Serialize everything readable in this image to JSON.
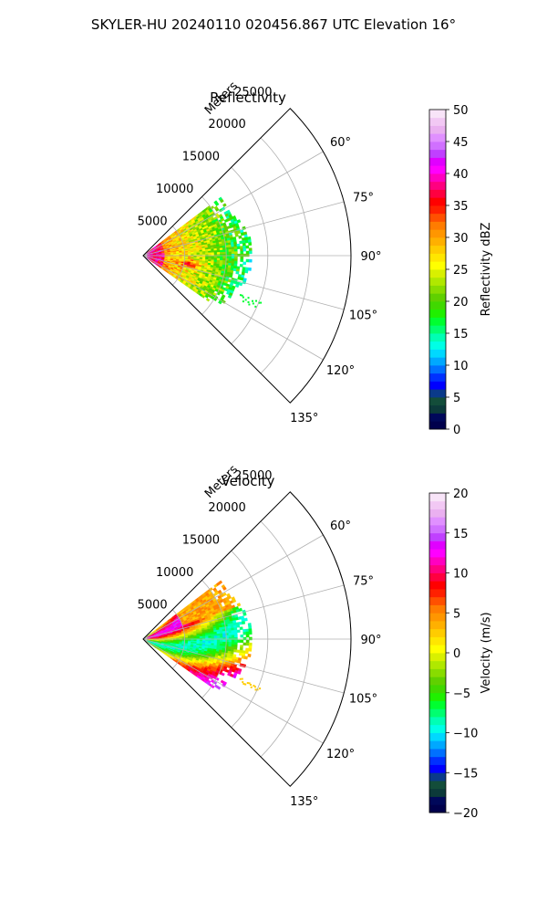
{
  "figure": {
    "title": "SKYLER-HU  20240110  020456.867 UTC Elevation 16°"
  },
  "chart_data": [
    {
      "type": "heatmap",
      "projection": "polar-sector",
      "title": "Reflectivity",
      "rlabel": "Meters",
      "r_ticks": [
        5000,
        10000,
        15000,
        20000,
        25000
      ],
      "r_tick_labels": [
        "5000",
        "10000",
        "15000",
        "20000",
        "25000"
      ],
      "r_max": 25000,
      "theta_range_deg": [
        45,
        135
      ],
      "theta_ticks_deg": [
        60,
        75,
        90,
        105,
        120,
        135
      ],
      "theta_tick_labels": [
        "60°",
        "75°",
        "90°",
        "105°",
        "120°",
        "135°"
      ],
      "grid": true,
      "data_extent": {
        "theta_deg": [
          53,
          124
        ],
        "r_max_m": 14000
      },
      "colorbar": {
        "label": "Reflectivity dBZ",
        "min": 0,
        "max": 50,
        "ticks": [
          0,
          5,
          10,
          15,
          20,
          25,
          30,
          35,
          40,
          45,
          50
        ],
        "tick_labels": [
          "0",
          "5",
          "10",
          "15",
          "20",
          "25",
          "30",
          "35",
          "40",
          "45",
          "50"
        ],
        "colors": [
          "#00004c",
          "#00085a",
          "#0c3a3a",
          "#134d3a",
          "#0a3a8a",
          "#0000ff",
          "#0030ff",
          "#0070ff",
          "#00a8ff",
          "#00d8ff",
          "#00ffe6",
          "#00ffb4",
          "#00ff70",
          "#00ff30",
          "#20f000",
          "#40d800",
          "#60d000",
          "#88dc00",
          "#b0e800",
          "#d8f000",
          "#ffff00",
          "#ffe600",
          "#ffcc00",
          "#ffb000",
          "#ff9600",
          "#ff7c00",
          "#ff5000",
          "#ff2000",
          "#ff0000",
          "#ff0040",
          "#ff0080",
          "#ff00c0",
          "#ff00ff",
          "#e000ff",
          "#c040ff",
          "#d070ff",
          "#e090ff",
          "#eab0f0",
          "#f2c8f4",
          "#f8e4f8"
        ]
      }
    },
    {
      "type": "heatmap",
      "projection": "polar-sector",
      "title": "Velocity",
      "rlabel": "Meters",
      "r_ticks": [
        5000,
        10000,
        15000,
        20000,
        25000
      ],
      "r_tick_labels": [
        "5000",
        "10000",
        "15000",
        "20000",
        "25000"
      ],
      "r_max": 25000,
      "theta_range_deg": [
        45,
        135
      ],
      "theta_ticks_deg": [
        60,
        75,
        90,
        105,
        120,
        135
      ],
      "theta_tick_labels": [
        "60°",
        "75°",
        "90°",
        "105°",
        "120°",
        "135°"
      ],
      "grid": true,
      "data_extent": {
        "theta_deg": [
          53,
          124
        ],
        "r_max_m": 14000
      },
      "colorbar": {
        "label": "Velocity (m/s)",
        "min": -20,
        "max": 20,
        "ticks": [
          -20,
          -15,
          -10,
          -5,
          0,
          5,
          10,
          15,
          20
        ],
        "tick_labels": [
          "−20",
          "−15",
          "−10",
          "−5",
          "0",
          "5",
          "10",
          "15",
          "20"
        ],
        "colors": [
          "#00004c",
          "#00085a",
          "#0c3a3a",
          "#134d3a",
          "#0a3a8a",
          "#0000ff",
          "#0030ff",
          "#0070ff",
          "#00a8ff",
          "#00d8ff",
          "#00ffe6",
          "#00ffb4",
          "#00ff70",
          "#00ff30",
          "#20f000",
          "#40d800",
          "#60d000",
          "#88dc00",
          "#b0e800",
          "#d8f000",
          "#ffff00",
          "#ffe600",
          "#ffcc00",
          "#ffb000",
          "#ff9600",
          "#ff7c00",
          "#ff5000",
          "#ff2000",
          "#ff0000",
          "#ff0040",
          "#ff0080",
          "#ff00c0",
          "#ff00ff",
          "#e000ff",
          "#c040ff",
          "#d070ff",
          "#e090ff",
          "#eab0f0",
          "#f2c8f4",
          "#f8e4f8"
        ]
      }
    }
  ]
}
